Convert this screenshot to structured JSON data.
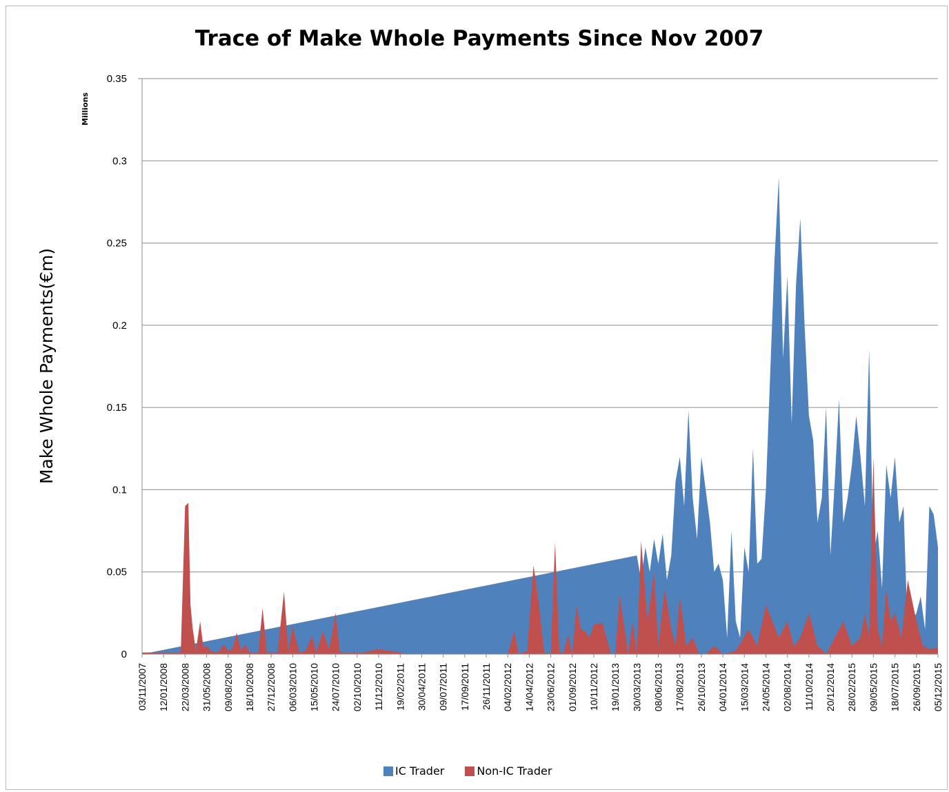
{
  "chart_data": {
    "type": "area",
    "title": "Trace of Make Whole Payments Since Nov 2007",
    "ylabel": "Make Whole Payments(€m)",
    "y_units": "Millions",
    "ylim": [
      0,
      0.35
    ],
    "y_ticks": [
      "0",
      "0.05",
      "0.1",
      "0.15",
      "0.2",
      "0.25",
      "0.3",
      "0.35"
    ],
    "x_tick_labels": [
      "03/11/2007",
      "12/01/2008",
      "22/03/2008",
      "31/05/2008",
      "09/08/2008",
      "18/10/2008",
      "27/12/2008",
      "06/03/2010",
      "15/05/2010",
      "24/07/2010",
      "02/10/2010",
      "11/12/2010",
      "19/02/2011",
      "30/04/2011",
      "09/07/2011",
      "17/09/2011",
      "26/11/2011",
      "04/02/2012",
      "14/04/2012",
      "23/06/2012",
      "01/09/2012",
      "10/11/2012",
      "19/01/2013",
      "30/03/2013",
      "08/06/2013",
      "17/08/2013",
      "26/10/2013",
      "04/01/2014",
      "15/03/2014",
      "24/05/2014",
      "02/08/2014",
      "11/10/2014",
      "20/12/2014",
      "28/02/2015",
      "09/05/2015",
      "18/07/2015",
      "26/09/2015",
      "05/12/2015"
    ],
    "grid": true,
    "legend_position": "bottom",
    "colors": {
      "ic": "#4f81bd",
      "nonic": "#c0504d"
    },
    "series": [
      {
        "name": "IC Trader",
        "x_index": [
          0,
          23.0,
          23.2,
          23.4,
          23.6,
          23.8,
          24.0,
          24.2,
          24.4,
          24.6,
          24.8,
          25.0,
          25.2,
          25.4,
          25.6,
          25.8,
          26.0,
          26.2,
          26.4,
          26.6,
          26.8,
          27.0,
          27.2,
          27.4,
          27.6,
          27.8,
          28.0,
          28.2,
          28.4,
          28.6,
          28.8,
          29.0,
          29.2,
          29.4,
          29.6,
          29.8,
          30.0,
          30.2,
          30.4,
          30.6,
          30.8,
          31.0,
          31.2,
          31.4,
          31.6,
          31.8,
          32.0,
          32.2,
          32.4,
          32.6,
          32.8,
          33.0,
          33.2,
          33.4,
          33.6,
          33.8,
          34.0,
          34.2,
          34.4,
          34.6,
          34.8,
          35.0,
          35.2,
          35.4,
          35.6,
          35.8,
          36.0,
          36.2,
          36.4,
          36.6,
          36.8,
          37.0
        ],
        "values": [
          0,
          0.06,
          0.045,
          0.065,
          0.05,
          0.07,
          0.055,
          0.073,
          0.045,
          0.06,
          0.105,
          0.12,
          0.09,
          0.148,
          0.095,
          0.07,
          0.12,
          0.1,
          0.08,
          0.05,
          0.055,
          0.045,
          0.01,
          0.075,
          0.02,
          0.01,
          0.065,
          0.05,
          0.125,
          0.055,
          0.058,
          0.1,
          0.17,
          0.24,
          0.29,
          0.18,
          0.23,
          0.14,
          0.225,
          0.265,
          0.2,
          0.145,
          0.13,
          0.08,
          0.095,
          0.15,
          0.06,
          0.105,
          0.155,
          0.08,
          0.095,
          0.115,
          0.145,
          0.12,
          0.09,
          0.185,
          0.06,
          0.075,
          0.04,
          0.115,
          0.095,
          0.12,
          0.08,
          0.09,
          0.01,
          0.02,
          0.025,
          0.035,
          0.015,
          0.09,
          0.085,
          0.065
        ]
      },
      {
        "name": "Non-IC Trader",
        "x_index": [
          0,
          0.3,
          0.6,
          0.9,
          1.2,
          1.5,
          1.8,
          2.0,
          2.15,
          2.25,
          2.35,
          2.5,
          2.7,
          2.85,
          3.0,
          3.2,
          3.4,
          3.6,
          3.8,
          4.0,
          4.2,
          4.4,
          4.6,
          4.8,
          5.0,
          5.2,
          5.4,
          5.6,
          5.8,
          6.0,
          6.3,
          6.6,
          6.8,
          7.0,
          7.3,
          7.6,
          7.9,
          8.1,
          8.4,
          8.7,
          9.0,
          9.2,
          9.4,
          9.6,
          9.8,
          10.0,
          10.3,
          10.6,
          11.0,
          11.5,
          12.0,
          12.4,
          12.8,
          13.0,
          13.4,
          14.0,
          15.0,
          16.0,
          17.0,
          17.3,
          17.5,
          17.9,
          18.2,
          18.4,
          18.7,
          19.0,
          19.2,
          19.4,
          19.6,
          19.8,
          20.0,
          20.2,
          20.4,
          20.6,
          20.8,
          21.0,
          21.4,
          21.8,
          22.0,
          22.2,
          22.6,
          22.8,
          23.0,
          23.2,
          23.5,
          23.8,
          24.0,
          24.3,
          24.6,
          24.8,
          25.0,
          25.3,
          25.6,
          25.9,
          26.2,
          26.6,
          27.0,
          27.6,
          28.2,
          28.6,
          29.0,
          29.3,
          29.6,
          30.0,
          30.3,
          30.6,
          31.0,
          31.4,
          31.8,
          32.2,
          32.6,
          33.0,
          33.4,
          33.6,
          33.8,
          34.0,
          34.2,
          34.4,
          34.6,
          34.8,
          35.0,
          35.3,
          35.6,
          36.0,
          36.3,
          36.6,
          37.0
        ],
        "values": [
          0.001,
          0.001,
          0.001,
          0.001,
          0.001,
          0.001,
          0.001,
          0.09,
          0.092,
          0.03,
          0.016,
          0.002,
          0.02,
          0.004,
          0.005,
          0.002,
          0.001,
          0.002,
          0.006,
          0.002,
          0.003,
          0.013,
          0.002,
          0.006,
          0.001,
          0.001,
          0.001,
          0.028,
          0.001,
          0.001,
          0.001,
          0.038,
          0.002,
          0.017,
          0.001,
          0.002,
          0.011,
          0.001,
          0.014,
          0.003,
          0.025,
          0.001,
          0.001,
          0.001,
          0.001,
          0.001,
          0.001,
          0.002,
          0.003,
          0.002,
          0.001,
          0.0,
          0.0,
          0.0,
          0.0,
          0.0,
          0.0,
          0.0,
          0.0,
          0.014,
          0.0,
          0.002,
          0.054,
          0.035,
          0.001,
          0.0,
          0.068,
          0.001,
          0.001,
          0.012,
          0.0,
          0.03,
          0.015,
          0.014,
          0.01,
          0.018,
          0.019,
          0.0,
          0.0,
          0.036,
          0.0,
          0.02,
          0.0,
          0.069,
          0.02,
          0.05,
          0.005,
          0.04,
          0.015,
          0.005,
          0.035,
          0.005,
          0.01,
          0.0,
          0.0,
          0.005,
          0.0,
          0.002,
          0.015,
          0.005,
          0.03,
          0.02,
          0.01,
          0.02,
          0.005,
          0.01,
          0.025,
          0.005,
          0.0,
          0.01,
          0.02,
          0.005,
          0.01,
          0.025,
          0.01,
          0.12,
          0.015,
          0.005,
          0.04,
          0.02,
          0.025,
          0.01,
          0.045,
          0.02,
          0.005,
          0.003,
          0.004
        ]
      }
    ]
  }
}
